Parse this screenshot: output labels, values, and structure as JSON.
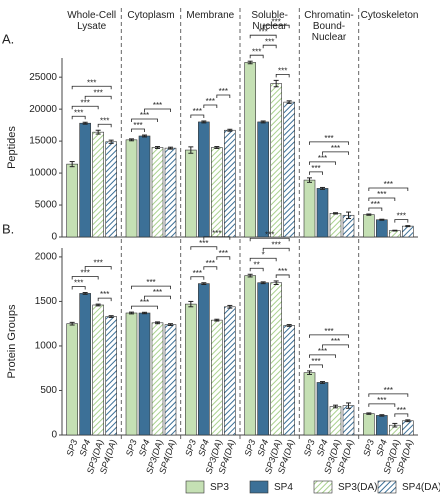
{
  "chart_data": {
    "type": "bar",
    "categories": [
      "Whole-Cell Lysate",
      "Cytoplasm",
      "Membrane",
      "Soluble-Nuclear",
      "Chromatin-Bound-Nuclear",
      "Cytoskeleton"
    ],
    "series": [
      {
        "name": "SP3",
        "color": "#c5e0b4",
        "hatch": false
      },
      {
        "name": "SP4",
        "color": "#3c7097",
        "hatch": false
      },
      {
        "name": "SP3(DA)",
        "color": "#a9d18e",
        "hatch": true
      },
      {
        "name": "SP4(DA)",
        "color": "#3c7097",
        "hatch": true
      }
    ],
    "panels": [
      {
        "label": "A.",
        "y_label": "Peptides",
        "ylim": [
          0,
          28000
        ],
        "yticks": [
          0,
          5000,
          10000,
          15000,
          20000,
          25000
        ],
        "series": [
          {
            "values": [
              11400,
              15200,
              13600,
              27300,
              8900,
              3500
            ],
            "errors": [
              400,
              150,
              500,
              200,
              350,
              100
            ]
          },
          {
            "values": [
              17800,
              15800,
              18000,
              18000,
              7600,
              2700
            ],
            "errors": [
              150,
              150,
              150,
              150,
              150,
              80
            ]
          },
          {
            "values": [
              16400,
              14000,
              14000,
              24000,
              3700,
              1000
            ],
            "errors": [
              300,
              150,
              150,
              500,
              100,
              60
            ]
          },
          {
            "values": [
              14900,
              13900,
              16700,
              21100,
              3400,
              1700
            ],
            "errors": [
              250,
              150,
              150,
              200,
              500,
              80
            ]
          }
        ],
        "significance": [
          {
            "group": 0,
            "from": 0,
            "to": 1,
            "label": "***"
          },
          {
            "group": 0,
            "from": 2,
            "to": 3,
            "label": "***"
          },
          {
            "group": 0,
            "from": 0,
            "to": 2,
            "label": "***"
          },
          {
            "group": 0,
            "from": 1,
            "to": 3,
            "label": "***"
          },
          {
            "group": 0,
            "from": 0,
            "to": 3,
            "label": "***"
          },
          {
            "group": 1,
            "from": 0,
            "to": 1,
            "label": "***"
          },
          {
            "group": 1,
            "from": 0,
            "to": 2,
            "label": "***"
          },
          {
            "group": 1,
            "from": 1,
            "to": 3,
            "label": "***"
          },
          {
            "group": 2,
            "from": 0,
            "to": 1,
            "label": "***"
          },
          {
            "group": 2,
            "from": 1,
            "to": 2,
            "label": "***"
          },
          {
            "group": 2,
            "from": 2,
            "to": 3,
            "label": "***"
          },
          {
            "group": 3,
            "from": 0,
            "to": 1,
            "label": "***"
          },
          {
            "group": 3,
            "from": 2,
            "to": 3,
            "label": "***"
          },
          {
            "group": 3,
            "from": 1,
            "to": 2,
            "label": "***"
          },
          {
            "group": 3,
            "from": 0,
            "to": 2,
            "label": "***"
          },
          {
            "group": 3,
            "from": 1,
            "to": 3,
            "label": "***"
          },
          {
            "group": 4,
            "from": 0,
            "to": 1,
            "label": "***"
          },
          {
            "group": 4,
            "from": 0,
            "to": 2,
            "label": "***"
          },
          {
            "group": 4,
            "from": 1,
            "to": 3,
            "label": "***"
          },
          {
            "group": 4,
            "from": 0,
            "to": 3,
            "label": "***"
          },
          {
            "group": 5,
            "from": 0,
            "to": 1,
            "label": "***"
          },
          {
            "group": 5,
            "from": 2,
            "to": 3,
            "label": "***"
          },
          {
            "group": 5,
            "from": 0,
            "to": 2,
            "label": "***"
          },
          {
            "group": 5,
            "from": 0,
            "to": 3,
            "label": "***"
          }
        ]
      },
      {
        "label": "B.",
        "y_label": "Protein Groups",
        "ylim": [
          0,
          2100
        ],
        "yticks": [
          0,
          500,
          1000,
          1500,
          2000
        ],
        "series": [
          {
            "values": [
              1250,
              1370,
              1470,
              1790,
              700,
              240
            ],
            "errors": [
              15,
              10,
              30,
              15,
              20,
              8
            ]
          },
          {
            "values": [
              1590,
              1370,
              1700,
              1710,
              590,
              220
            ],
            "errors": [
              10,
              8,
              10,
              10,
              10,
              8
            ]
          },
          {
            "values": [
              1460,
              1260,
              1290,
              1710,
              320,
              110
            ],
            "errors": [
              10,
              10,
              10,
              20,
              15,
              20
            ]
          },
          {
            "values": [
              1330,
              1240,
              1440,
              1230,
              330,
              160
            ],
            "errors": [
              10,
              10,
              15,
              10,
              30,
              10
            ]
          }
        ],
        "significance": [
          {
            "group": 0,
            "from": 0,
            "to": 1,
            "label": "***"
          },
          {
            "group": 0,
            "from": 2,
            "to": 3,
            "label": "***"
          },
          {
            "group": 0,
            "from": 0,
            "to": 2,
            "label": "***"
          },
          {
            "group": 0,
            "from": 1,
            "to": 3,
            "label": "***"
          },
          {
            "group": 1,
            "from": 0,
            "to": 2,
            "label": "***"
          },
          {
            "group": 1,
            "from": 1,
            "to": 3,
            "label": "***"
          },
          {
            "group": 1,
            "from": 0,
            "to": 3,
            "label": "***"
          },
          {
            "group": 2,
            "from": 0,
            "to": 1,
            "label": "***"
          },
          {
            "group": 2,
            "from": 1,
            "to": 2,
            "label": "***"
          },
          {
            "group": 2,
            "from": 2,
            "to": 3,
            "label": "***"
          },
          {
            "group": 2,
            "from": 0,
            "to": 2,
            "label": "***"
          },
          {
            "group": 2,
            "from": 1,
            "to": 3,
            "label": "***"
          },
          {
            "group": 3,
            "from": 0,
            "to": 1,
            "label": "**"
          },
          {
            "group": 3,
            "from": 2,
            "to": 3,
            "label": "***"
          },
          {
            "group": 3,
            "from": 0,
            "to": 2,
            "label": "*"
          },
          {
            "group": 3,
            "from": 1,
            "to": 3,
            "label": "***"
          },
          {
            "group": 3,
            "from": 0,
            "to": 3,
            "label": "***"
          },
          {
            "group": 4,
            "from": 0,
            "to": 1,
            "label": "***"
          },
          {
            "group": 4,
            "from": 0,
            "to": 2,
            "label": "***"
          },
          {
            "group": 4,
            "from": 1,
            "to": 3,
            "label": "***"
          },
          {
            "group": 4,
            "from": 0,
            "to": 3,
            "label": "***"
          },
          {
            "group": 5,
            "from": 2,
            "to": 3,
            "label": "***"
          },
          {
            "group": 5,
            "from": 0,
            "to": 2,
            "label": "***"
          },
          {
            "group": 5,
            "from": 0,
            "to": 3,
            "label": "***"
          }
        ]
      }
    ]
  }
}
